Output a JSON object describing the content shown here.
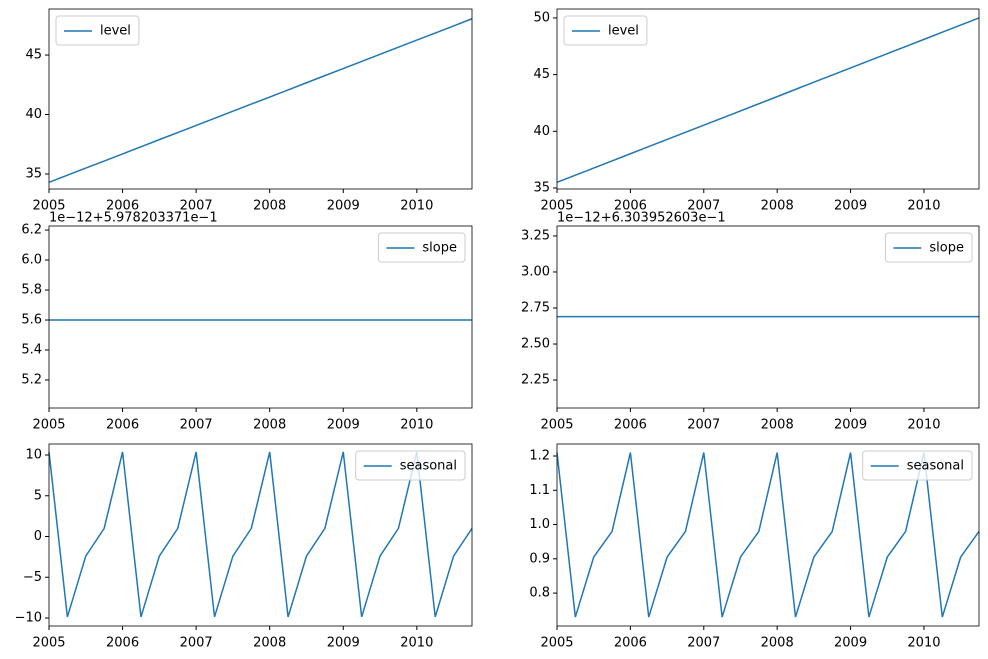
{
  "chart_data": [
    {
      "type": "line",
      "x": [
        2005,
        2005.25,
        2005.5,
        2005.75,
        2006,
        2006.25,
        2006.5,
        2006.75,
        2007,
        2007.25,
        2007.5,
        2007.75,
        2008,
        2008.25,
        2008.5,
        2008.75,
        2009,
        2009.25,
        2009.5,
        2009.75,
        2010,
        2010.25,
        2010.5,
        2010.75
      ],
      "series": [
        {
          "name": "level",
          "color": "#1f77b4",
          "values": [
            34.3,
            34.9,
            35.5,
            36.09,
            36.69,
            37.29,
            37.89,
            38.48,
            39.08,
            39.68,
            40.28,
            40.88,
            41.47,
            42.07,
            42.67,
            43.27,
            43.86,
            44.46,
            45.06,
            45.66,
            46.26,
            46.85,
            47.45,
            48.05
          ]
        }
      ],
      "xlim": [
        2005,
        2010.75
      ],
      "xticks": [
        2005,
        2006,
        2007,
        2008,
        2009,
        2010
      ],
      "ylim": [
        33.74,
        48.87
      ],
      "yticks": [
        35,
        40,
        45
      ],
      "legend": "upper left"
    },
    {
      "type": "line",
      "x": [
        2005,
        2005.25,
        2005.5,
        2005.75,
        2006,
        2006.25,
        2006.5,
        2006.75,
        2007,
        2007.25,
        2007.5,
        2007.75,
        2008,
        2008.25,
        2008.5,
        2008.75,
        2009,
        2009.25,
        2009.5,
        2009.75,
        2010,
        2010.25,
        2010.5,
        2010.75
      ],
      "series": [
        {
          "name": "level",
          "color": "#1f77b4",
          "values": [
            35.5,
            36.13,
            36.76,
            37.39,
            38.02,
            38.65,
            39.28,
            39.91,
            40.54,
            41.17,
            41.8,
            42.43,
            43.06,
            43.7,
            44.33,
            44.96,
            45.59,
            46.22,
            46.85,
            47.48,
            48.11,
            48.74,
            49.37,
            50.0
          ]
        }
      ],
      "xlim": [
        2005,
        2010.75
      ],
      "xticks": [
        2005,
        2006,
        2007,
        2008,
        2009,
        2010
      ],
      "ylim": [
        34.91,
        50.79
      ],
      "yticks": [
        35,
        40,
        45,
        50
      ],
      "legend": "upper left"
    },
    {
      "type": "line",
      "offset_text": "1e−12+5.978203371e−1",
      "x": [
        2005,
        2005.25,
        2005.5,
        2005.75,
        2006,
        2006.25,
        2006.5,
        2006.75,
        2007,
        2007.25,
        2007.5,
        2007.75,
        2008,
        2008.25,
        2008.5,
        2008.75,
        2009,
        2009.25,
        2009.5,
        2009.75,
        2010,
        2010.25,
        2010.5,
        2010.75
      ],
      "series": [
        {
          "name": "slope",
          "color": "#1f77b4",
          "values": [
            5.6,
            5.6,
            5.6,
            5.6,
            5.6,
            5.6,
            5.6,
            5.6,
            5.6,
            5.6,
            5.6,
            5.6,
            5.6,
            5.6,
            5.6,
            5.6,
            5.6,
            5.6,
            5.6,
            5.6,
            5.6,
            5.6,
            5.6,
            5.6
          ]
        }
      ],
      "xlim": [
        2005,
        2010.75
      ],
      "xticks": [
        2005,
        2006,
        2007,
        2008,
        2009,
        2010
      ],
      "ylim": [
        5.013,
        6.227
      ],
      "yticks": [
        5.2,
        5.4,
        5.6,
        5.8,
        {
          "value": 6.0,
          "label": "6.0"
        },
        6.2
      ],
      "legend": "upper right"
    },
    {
      "type": "line",
      "offset_text": "1e−12+6.303952603e−1",
      "x": [
        2005,
        2005.25,
        2005.5,
        2005.75,
        2006,
        2006.25,
        2006.5,
        2006.75,
        2007,
        2007.25,
        2007.5,
        2007.75,
        2008,
        2008.25,
        2008.5,
        2008.75,
        2009,
        2009.25,
        2009.5,
        2009.75,
        2010,
        2010.25,
        2010.5,
        2010.75
      ],
      "series": [
        {
          "name": "slope",
          "color": "#1f77b4",
          "values": [
            2.69,
            2.69,
            2.69,
            2.69,
            2.69,
            2.69,
            2.69,
            2.69,
            2.69,
            2.69,
            2.69,
            2.69,
            2.69,
            2.69,
            2.69,
            2.69,
            2.69,
            2.69,
            2.69,
            2.69,
            2.69,
            2.69,
            2.69,
            2.69
          ]
        }
      ],
      "xlim": [
        2005,
        2010.75
      ],
      "xticks": [
        2005,
        2006,
        2007,
        2008,
        2009,
        2010
      ],
      "ylim": [
        2.056,
        3.319
      ],
      "yticks": [
        2.25,
        {
          "value": 2.5,
          "label": "2.50"
        },
        2.75,
        {
          "value": 3.0,
          "label": "3.00"
        },
        3.25
      ],
      "legend": "upper right"
    },
    {
      "type": "line",
      "x": [
        2005,
        2005.25,
        2005.5,
        2005.75,
        2006,
        2006.25,
        2006.5,
        2006.75,
        2007,
        2007.25,
        2007.5,
        2007.75,
        2008,
        2008.25,
        2008.5,
        2008.75,
        2009,
        2009.25,
        2009.5,
        2009.75,
        2010,
        2010.25,
        2010.5,
        2010.75
      ],
      "series": [
        {
          "name": "seasonal",
          "color": "#1f77b4",
          "values": [
            10.37,
            -9.87,
            -2.4,
            1.0,
            10.37,
            -9.87,
            -2.4,
            1.0,
            10.37,
            -9.87,
            -2.4,
            1.0,
            10.37,
            -9.87,
            -2.4,
            1.0,
            10.37,
            -9.87,
            -2.4,
            1.0,
            10.37,
            -9.87,
            -2.4,
            1.0
          ]
        }
      ],
      "xlim": [
        2005,
        2010.75
      ],
      "xticks": [
        2005,
        2006,
        2007,
        2008,
        2009,
        2010
      ],
      "ylim": [
        -10.98,
        11.35
      ],
      "yticks": [
        {
          "value": -10,
          "label": "−10"
        },
        {
          "value": -5,
          "label": "−5"
        },
        0,
        5,
        10
      ],
      "legend": "upper right"
    },
    {
      "type": "line",
      "x": [
        2005,
        2005.25,
        2005.5,
        2005.75,
        2006,
        2006.25,
        2006.5,
        2006.75,
        2007,
        2007.25,
        2007.5,
        2007.75,
        2008,
        2008.25,
        2008.5,
        2008.75,
        2009,
        2009.25,
        2009.5,
        2009.75,
        2010,
        2010.25,
        2010.5,
        2010.75
      ],
      "series": [
        {
          "name": "seasonal",
          "color": "#1f77b4",
          "values": [
            1.21,
            0.73,
            0.905,
            0.98,
            1.21,
            0.73,
            0.905,
            0.98,
            1.21,
            0.73,
            0.905,
            0.98,
            1.21,
            0.73,
            0.905,
            0.98,
            1.21,
            0.73,
            0.905,
            0.98,
            1.21,
            0.73,
            0.905,
            0.98
          ]
        }
      ],
      "xlim": [
        2005,
        2010.75
      ],
      "xticks": [
        2005,
        2006,
        2007,
        2008,
        2009,
        2010
      ],
      "ylim": [
        0.704,
        1.235
      ],
      "yticks": [
        0.8,
        0.9,
        {
          "value": 1.0,
          "label": "1.0"
        },
        1.1,
        1.2
      ],
      "legend": "upper right"
    }
  ]
}
